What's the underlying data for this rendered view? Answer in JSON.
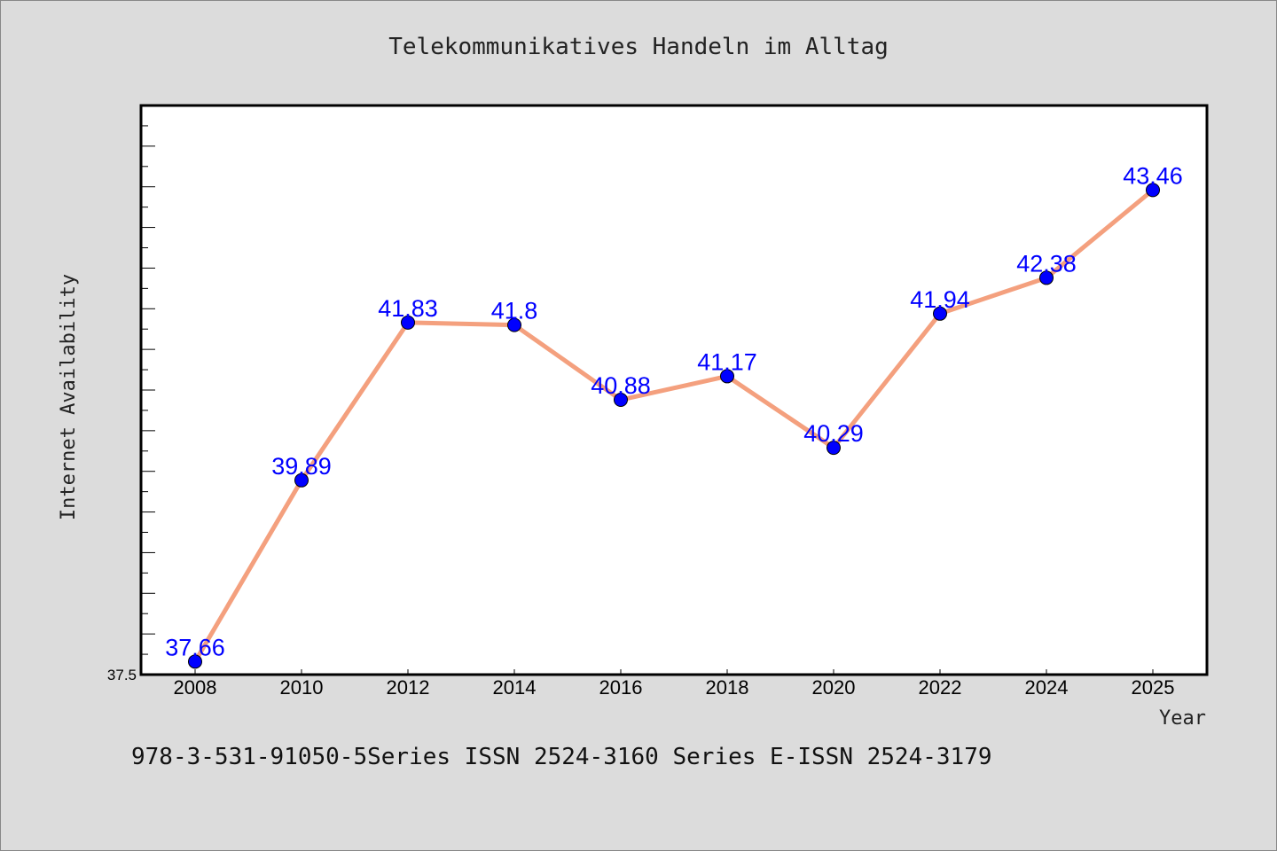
{
  "chart_data": {
    "type": "line",
    "title": "Telekommunikatives Handeln im Alltag",
    "xlabel": "Year",
    "ylabel": "Internet Availability",
    "categories": [
      "2008",
      "2010",
      "2012",
      "2014",
      "2016",
      "2018",
      "2020",
      "2022",
      "2024",
      "2025"
    ],
    "values": [
      37.66,
      39.89,
      41.83,
      41.8,
      40.88,
      41.17,
      40.29,
      41.94,
      42.38,
      43.46
    ],
    "data_labels": [
      "37.66",
      "39.89",
      "41.83",
      "41.8",
      "40.88",
      "41.17",
      "40.29",
      "41.94",
      "42.38",
      "43.46"
    ],
    "ylim": [
      37.5,
      44.5
    ],
    "yticks_shown": [
      "37.5"
    ],
    "grid": false,
    "line_color": "#f4a07e",
    "marker_color": "#0000ff",
    "label_color": "#0000ff"
  },
  "footer": {
    "text": "978-3-531-91050-5Series ISSN 2524-3160 Series E-ISSN 2524-3179"
  }
}
